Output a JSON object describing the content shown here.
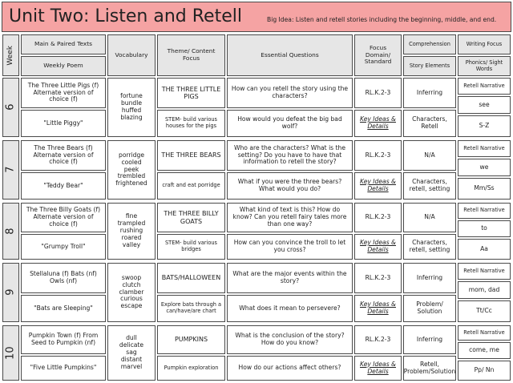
{
  "header": {
    "title": "Unit Two: Listen and Retell",
    "big_idea": "Big Idea: Listen and retell stories including the beginning, middle, and end."
  },
  "columns": {
    "week": "Week",
    "texts": "Main & Paired Texts",
    "poem": "Weekly Poem",
    "vocabulary": "Vocabulary",
    "theme": "Theme/ Content Focus",
    "questions": "Essential Questions",
    "standard": "Focus Domain/ Standard",
    "comprehension": "Comprehension",
    "story_elements": "Story Elements",
    "writing": "Writing Focus",
    "phonics": "Phonics/ Sight Words"
  },
  "weeks": [
    {
      "week": "6",
      "text": "The Three Little Pigs (f) Alternate version of choice (f)",
      "poem": "\"Little Piggy\"",
      "vocabulary": [
        "fortune",
        "bundle",
        "huffed",
        "blazing"
      ],
      "theme": "THE THREE LITTLE PIGS",
      "activity": "STEM- build various houses for the pigs",
      "question": "How can you retell the story using the characters?",
      "question_2": "How would you defeat the big bad wolf?",
      "standard": "RL.K.2-3",
      "domain": "Key Ideas & Details",
      "comprehension": "Inferring",
      "story_elements": "Characters, Retell",
      "writing": "Retell Narrative",
      "sight_word": "see",
      "phonics": "S-Z"
    },
    {
      "week": "7",
      "text": "The Three Bears (f) Alternate version of choice (f)",
      "poem": "\"Teddy Bear\"",
      "vocabulary": [
        "porridge",
        "cooled",
        "peek",
        "trembled",
        "frightened"
      ],
      "theme": "THE THREE BEARS",
      "activity": "craft and eat porridge",
      "question": "Who are the characters?  What is the setting? Do you have to have that information to retell the story?",
      "question_2": "What if you were the three bears?  What would you do?",
      "standard": "RL.K.2-3",
      "domain": "Key Ideas & Details",
      "comprehension": "N/A",
      "story_elements": "Characters, retell, setting",
      "writing": "Retell Narrative",
      "sight_word": "we",
      "phonics": "Mm/Ss"
    },
    {
      "week": "8",
      "text": "The Three Billy Goats (f) Alternate version of choice (f)",
      "poem": "\"Grumpy Troll\"",
      "vocabulary": [
        "fine",
        "trampled",
        "rushing",
        "roared",
        "valley"
      ],
      "theme": "THE THREE BILLY GOATS",
      "activity": "STEM- build various bridges",
      "question": "What kind of text is this?  How do know? Can you retell fairy tales more than one way?",
      "question_2": "How can you convince the troll to let you cross?",
      "standard": "RL.K.2-3",
      "domain": "Key Ideas & Details",
      "comprehension": "N/A",
      "story_elements": "Characters, retell, setting",
      "writing": "Retell Narrative",
      "sight_word": "to",
      "phonics": "Aa"
    },
    {
      "week": "9",
      "text": "Stellaluna (f) Bats (nf) Owls (nf)",
      "poem": "\"Bats are Sleeping\"",
      "vocabulary": [
        "swoop",
        "clutch",
        "clamber",
        "curious",
        "escape"
      ],
      "theme": "BATS/HALLOWEEN",
      "activity": "Explore bats through a can/have/are chart",
      "question": "What are the major events within the story?",
      "question_2": "What does it mean to persevere?",
      "standard": "RL.K.2-3",
      "domain": "Key Ideas & Details",
      "comprehension": "Inferring",
      "story_elements": "Problem/ Solution",
      "writing": "Retell Narrative",
      "sight_word": "mom, dad",
      "phonics": "Tt/Cc"
    },
    {
      "week": "10",
      "text": "Pumpkin Town (f) From Seed to Pumpkin (nf)",
      "poem": "\"Five Little Pumpkins\"",
      "vocabulary": [
        "dull",
        "delicate",
        "sag",
        "distant",
        "marvel"
      ],
      "theme": "PUMPKINS",
      "activity": "Pumpkin exploration",
      "question": "What is the conclusion of the story?  How do you know?",
      "question_2": "How do our actions affect others?",
      "standard": "RL.K.2-3",
      "domain": "Key Ideas & Details",
      "comprehension": "Inferring",
      "story_elements": "Retell, Problem/Solution",
      "writing": "Retell Narrative",
      "sight_word": "come, me",
      "phonics": "Pp/ Nn"
    }
  ]
}
